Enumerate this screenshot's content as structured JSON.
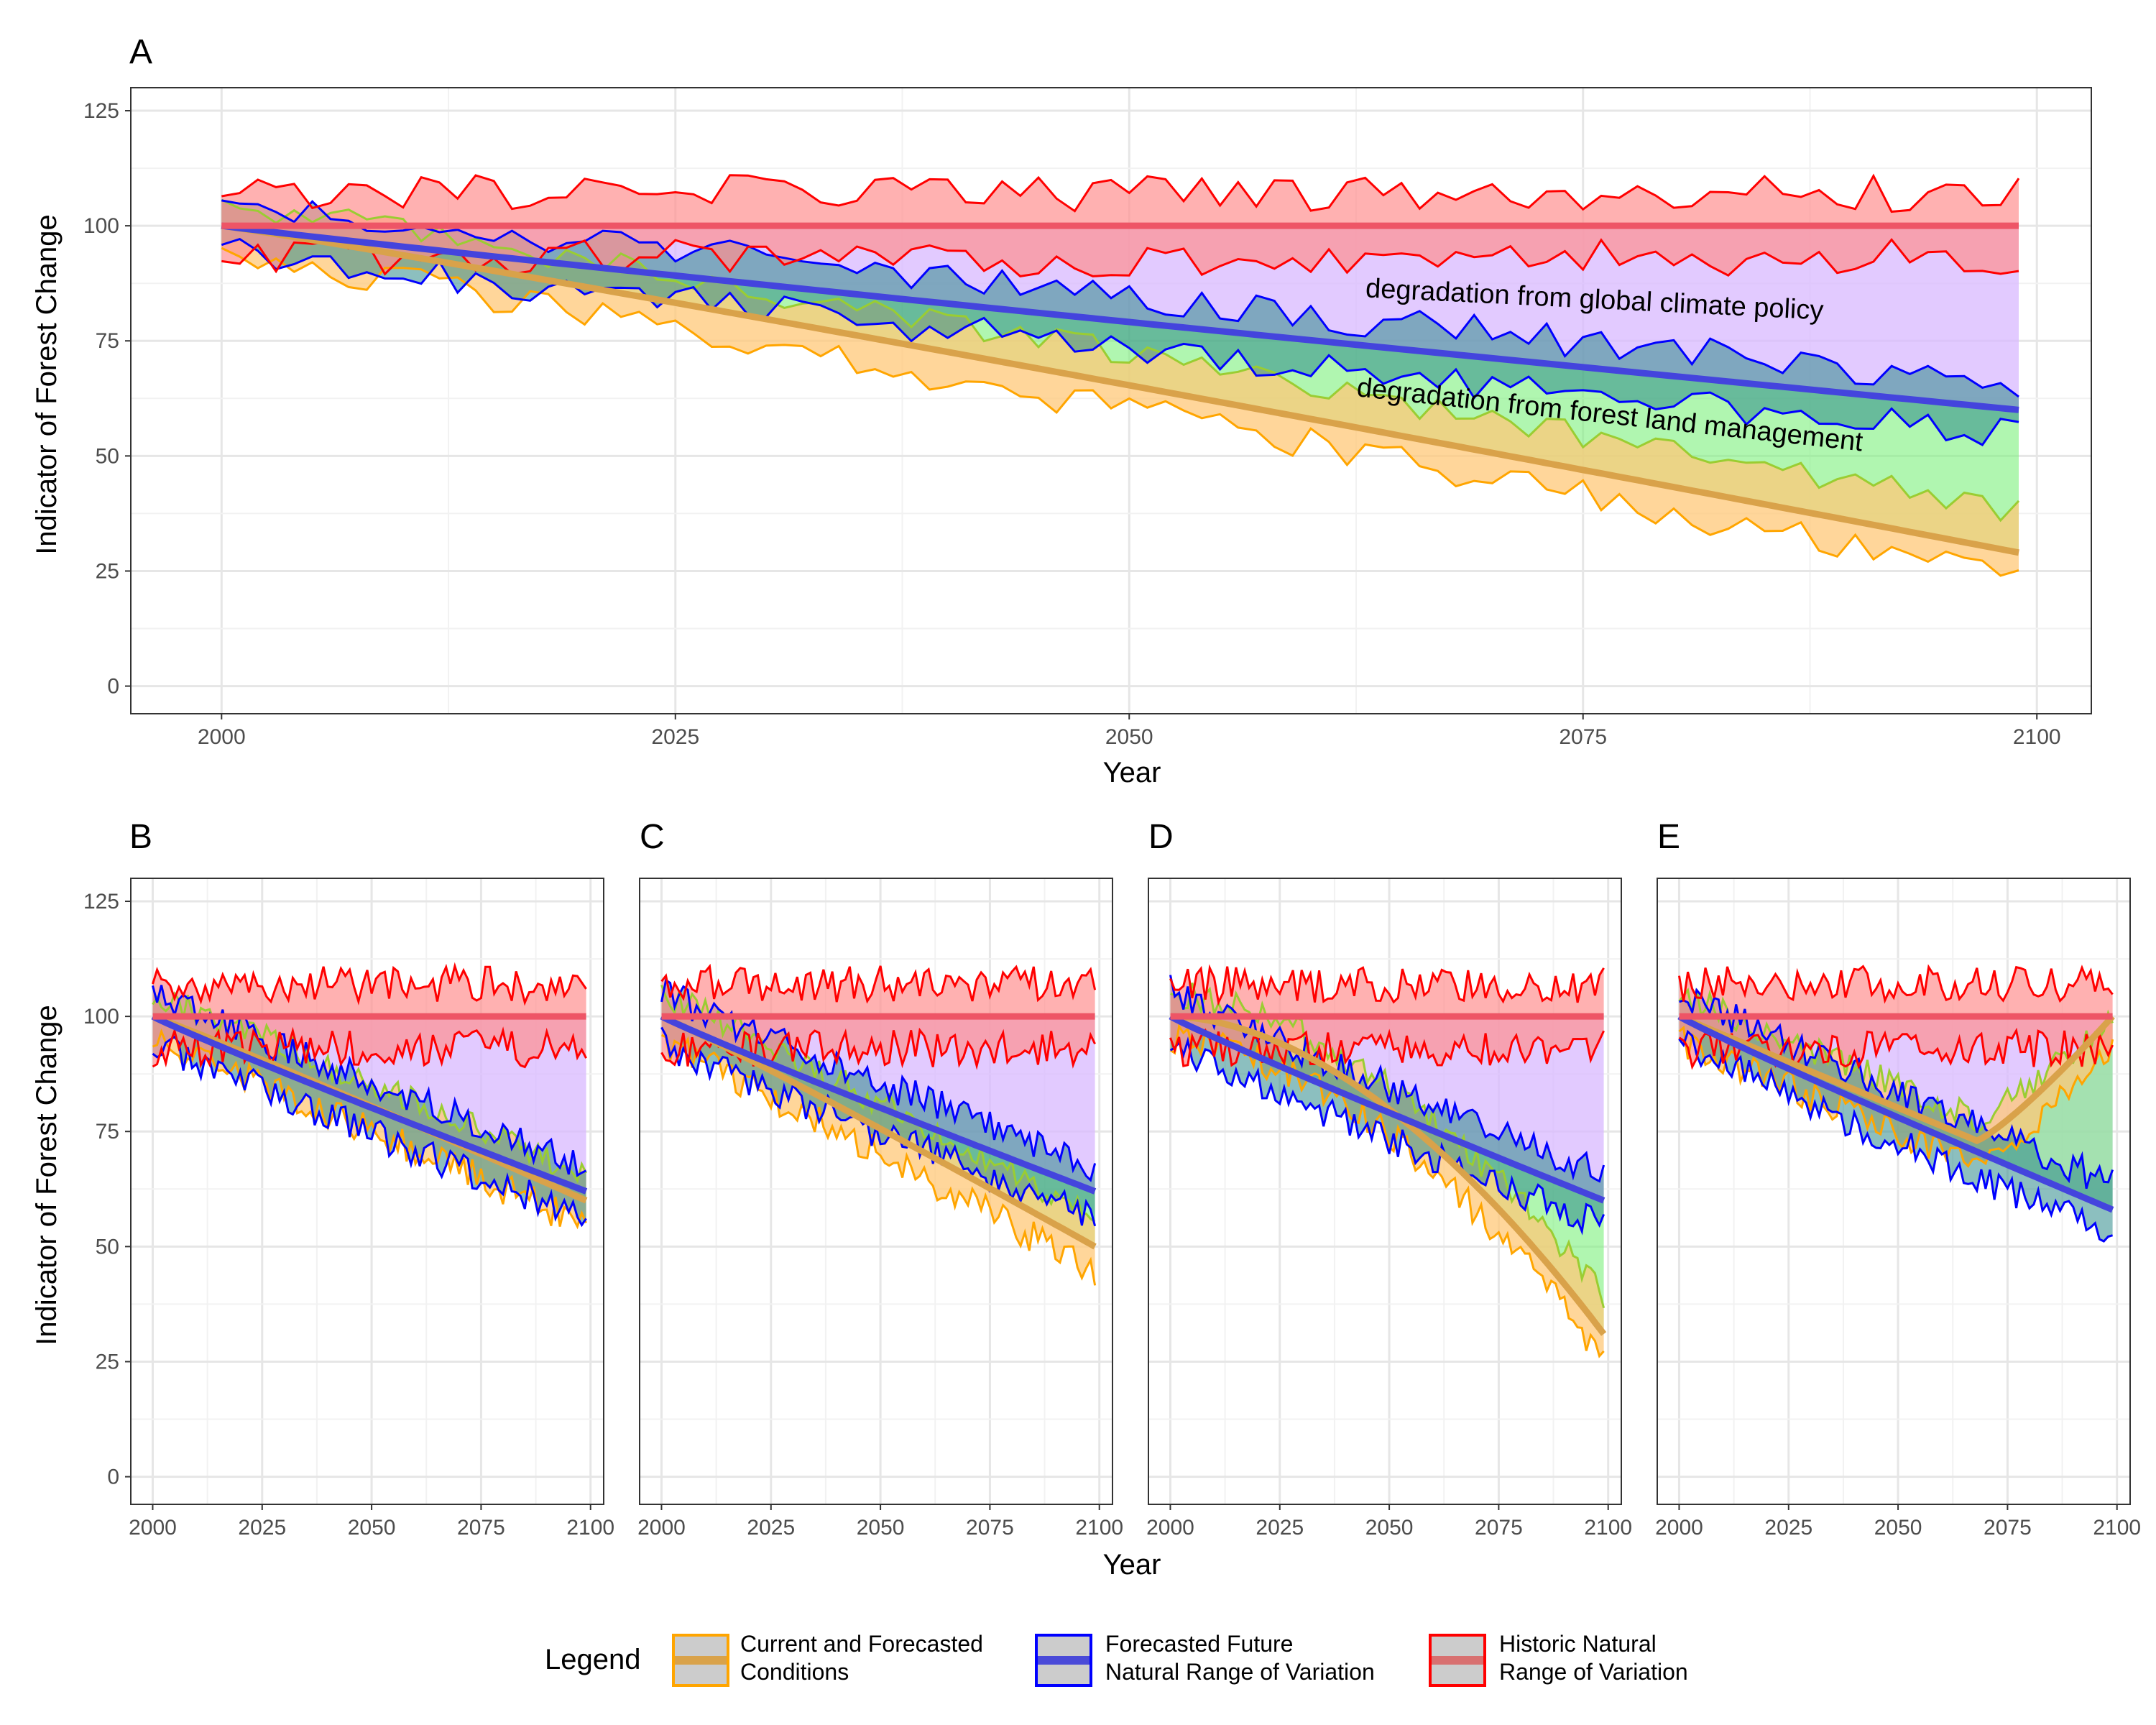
{
  "figure": {
    "legend": {
      "title": "Legend",
      "items": [
        {
          "key": "current",
          "line1": "Current and Forecasted",
          "line2": "Conditions",
          "band_color": "#d9a24a",
          "line_color": "#FFA500"
        },
        {
          "key": "future",
          "line1": "Forecasted Future",
          "line2": "Natural Range of Variation",
          "band_color": "#4a4ad8",
          "line_color": "#0000FF"
        },
        {
          "key": "historic",
          "line1": "Historic Natural",
          "line2": "Range of Variation",
          "band_color": "#d87070",
          "line_color": "#FF0000"
        }
      ]
    },
    "ylabel": "Indicator of Forest Change",
    "xlabel": "Year",
    "colors": {
      "current": "#FFA500",
      "current_fill": "#FFC878",
      "current_mean": "#D9A24A",
      "green_line": "#9ACD32",
      "green_fill": "#7CF07C",
      "future": "#0000FF",
      "future_fill": "#6666FF",
      "future_mean": "#4444DD",
      "teal_fill": "#2E8B8B",
      "historic": "#FF0000",
      "historic_fill": "#FF9090",
      "historic_mean": "#EE5566",
      "purple_fill": "#D8B8FF"
    }
  },
  "chart_data": [
    {
      "panel": "A",
      "type": "area",
      "xlim": [
        2000,
        2100
      ],
      "ylim": [
        0,
        125
      ],
      "x_ticks": [
        2000,
        2025,
        2050,
        2075,
        2100
      ],
      "y_ticks": [
        0,
        25,
        50,
        75,
        100,
        125
      ],
      "annotations": [
        "degradation from global climate policy",
        "degradation from forest land management"
      ],
      "series": [
        {
          "name": "Historic Natural Range of Variation",
          "start": 100,
          "end": 100
        },
        {
          "name": "Forecasted Future Natural Range of Variation",
          "start": 100,
          "end": 60
        },
        {
          "name": "Current and Forecasted Conditions",
          "start": 100,
          "end": 29
        }
      ]
    },
    {
      "panel": "B",
      "type": "area",
      "xlim": [
        2000,
        2100
      ],
      "ylim": [
        0,
        125
      ],
      "x_ticks": [
        2000,
        2025,
        2050,
        2075,
        2100
      ],
      "series": [
        {
          "name": "Historic Natural Range of Variation",
          "start": 100,
          "end": 100
        },
        {
          "name": "Forecasted Future Natural Range of Variation",
          "start": 100,
          "end": 62
        },
        {
          "name": "Current and Forecasted Conditions",
          "start": 100,
          "end": 60
        }
      ]
    },
    {
      "panel": "C",
      "type": "area",
      "xlim": [
        2000,
        2100
      ],
      "ylim": [
        0,
        125
      ],
      "x_ticks": [
        2000,
        2025,
        2050,
        2075,
        2100
      ],
      "series": [
        {
          "name": "Historic Natural Range of Variation",
          "start": 100,
          "end": 100
        },
        {
          "name": "Forecasted Future Natural Range of Variation",
          "start": 100,
          "end": 62
        },
        {
          "name": "Current and Forecasted Conditions",
          "start": 100,
          "end": 50
        }
      ]
    },
    {
      "panel": "D",
      "type": "area",
      "xlim": [
        2000,
        2100
      ],
      "ylim": [
        0,
        125
      ],
      "x_ticks": [
        2000,
        2025,
        2050,
        2075,
        2100
      ],
      "series": [
        {
          "name": "Historic Natural Range of Variation",
          "start": 100,
          "end": 100
        },
        {
          "name": "Forecasted Future Natural Range of Variation",
          "start": 100,
          "end": 60
        },
        {
          "name": "Current and Forecasted Conditions",
          "start": 100,
          "end": 31
        }
      ]
    },
    {
      "panel": "E",
      "type": "area",
      "xlim": [
        2000,
        2100
      ],
      "ylim": [
        0,
        125
      ],
      "x_ticks": [
        2000,
        2025,
        2050,
        2075,
        2100
      ],
      "series": [
        {
          "name": "Historic Natural Range of Variation",
          "start": 100,
          "end": 100
        },
        {
          "name": "Forecasted Future Natural Range of Variation",
          "start": 100,
          "end": 58
        },
        {
          "name": "Current and Forecasted Conditions",
          "start": 100,
          "end": 100,
          "dip_min": 73,
          "dip_year": 2068
        }
      ]
    }
  ]
}
